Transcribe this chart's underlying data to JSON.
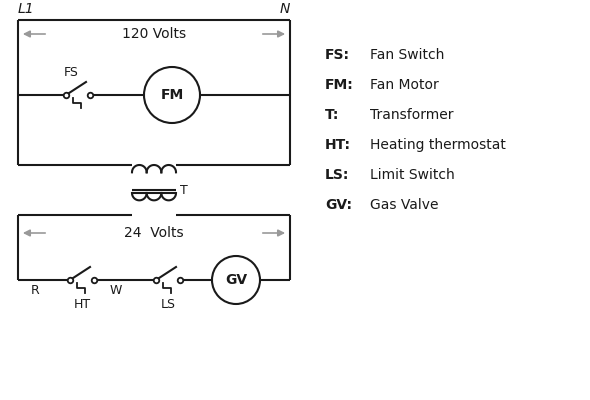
{
  "bg_color": "#ffffff",
  "line_color": "#1a1a1a",
  "gray_color": "#999999",
  "legend_items": [
    [
      "FS:",
      "Fan Switch"
    ],
    [
      "FM:",
      "Fan Motor"
    ],
    [
      "T:",
      "Transformer"
    ],
    [
      "HT:",
      "Heating thermostat"
    ],
    [
      "LS:",
      "Limit Switch"
    ],
    [
      "GV:",
      "Gas Valve"
    ]
  ],
  "label_L1": "L1",
  "label_N": "N",
  "label_120V": "120 Volts",
  "label_24V": "24  Volts",
  "label_FS": "FS",
  "label_FM": "FM",
  "label_T": "T",
  "label_HT": "HT",
  "label_LS": "LS",
  "label_GV": "GV",
  "label_R": "R",
  "label_W": "W"
}
